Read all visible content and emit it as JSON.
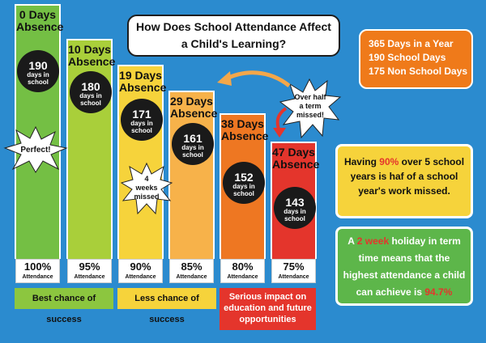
{
  "title": {
    "line1": "How Does School Attendance Affect",
    "line2": "a Child's Learning?"
  },
  "stats": [
    {
      "num": "365",
      "text": "Days in a Year"
    },
    {
      "num": "190",
      "text": "School Days"
    },
    {
      "num": "175",
      "text": "Non School Days"
    }
  ],
  "bars": [
    {
      "absence": "0 Days",
      "absence_word": "Absence",
      "days": "190",
      "days_l1": "days in",
      "days_l2": "school",
      "attendance": "100%",
      "att_label": "Attendance",
      "color": "#74bf44"
    },
    {
      "absence": "10 Days",
      "absence_word": "Absence",
      "days": "180",
      "days_l1": "days in",
      "days_l2": "school",
      "attendance": "95%",
      "att_label": "Attendance",
      "color": "#a9cf3a"
    },
    {
      "absence": "19 Days",
      "absence_word": "Absence",
      "days": "171",
      "days_l1": "days in",
      "days_l2": "school",
      "attendance": "90%",
      "att_label": "Attendance",
      "color": "#f6d33b"
    },
    {
      "absence": "29 Days",
      "absence_word": "Absence",
      "days": "161",
      "days_l1": "days in",
      "days_l2": "school",
      "attendance": "85%",
      "att_label": "Attendance",
      "color": "#f7b24a"
    },
    {
      "absence": "38 Days",
      "absence_word": "Absence",
      "days": "152",
      "days_l1": "days in",
      "days_l2": "school",
      "attendance": "80%",
      "att_label": "Attendance",
      "color": "#ee7722"
    },
    {
      "absence": "47 Days",
      "absence_word": "Absence",
      "days": "143",
      "days_l1": "days in",
      "days_l2": "school",
      "attendance": "75%",
      "att_label": "Attendance",
      "color": "#e4352c"
    }
  ],
  "bursts": {
    "perfect": "Perfect!",
    "weeks": [
      "4",
      "weeks",
      "missed"
    ],
    "term": [
      "Over half",
      "a term",
      "missed!"
    ]
  },
  "bands": {
    "best": "Best chance of success",
    "less": "Less chance of success",
    "serious": [
      "Serious impact on",
      "education and future",
      "opportunities"
    ]
  },
  "info1": {
    "a": "Having ",
    "pct": "90%",
    "b": " over 5 school",
    "line2": "years is haf of a school",
    "line3": "year's work missed."
  },
  "info2": {
    "a": "A ",
    "two": "2 week",
    "b": " holiday in term",
    "line2": "time means that the",
    "line3": "highest attendance a child",
    "line4a": "can achieve is ",
    "pct": "94.7%"
  },
  "colors": {
    "background": "#2b8bcf",
    "orange": "#ef7a1a",
    "yellow_box": "#f6d33b",
    "green_box": "#5db64a",
    "red": "#e4352c",
    "highlight_red": "#e4352c"
  }
}
